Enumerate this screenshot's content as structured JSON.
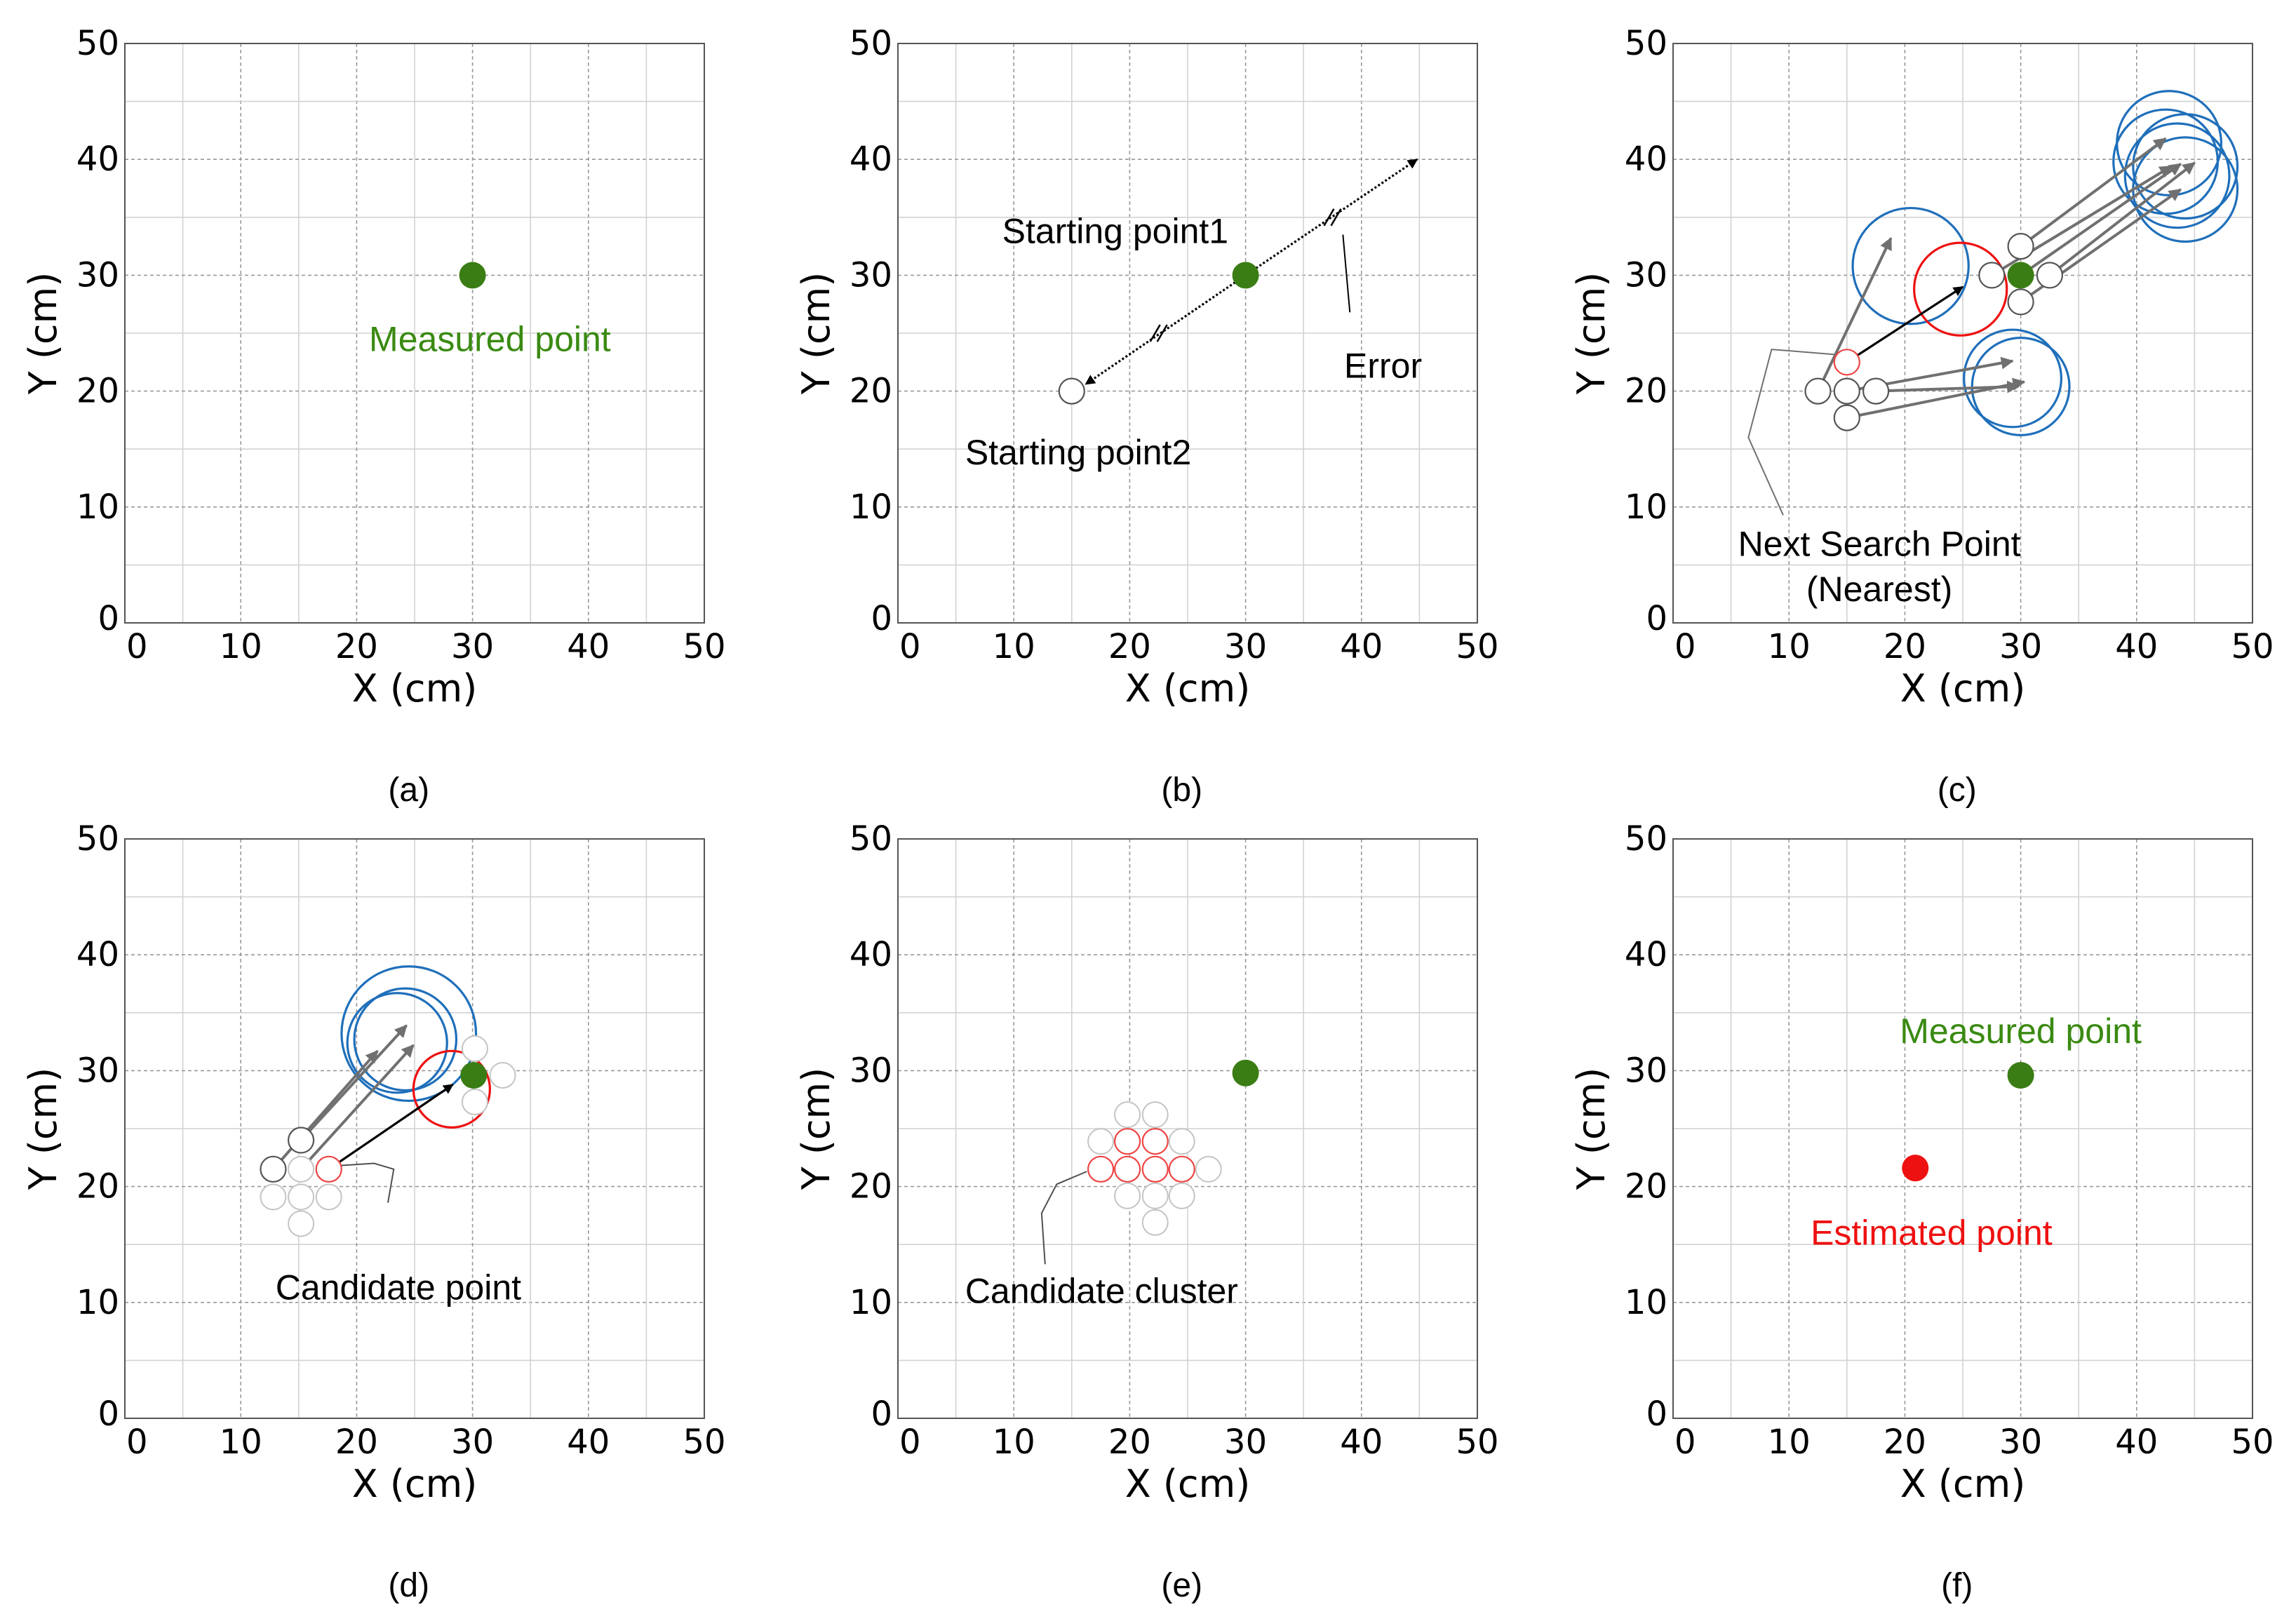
{
  "chart_data": [
    {
      "type": "scatter",
      "caption": "(a)",
      "xlabel": "X (cm)",
      "ylabel": "Y (cm)",
      "xlim": [
        0,
        50
      ],
      "ylim": [
        0,
        50
      ],
      "xticks": [
        "0",
        "10",
        "20",
        "30",
        "40",
        "50"
      ],
      "yticks": [
        "0",
        "10",
        "20",
        "30",
        "40",
        "50"
      ],
      "grid": true,
      "points": [
        {
          "x": 30,
          "y": 30,
          "kind": "measured"
        }
      ],
      "circles": [],
      "arrows": [],
      "leaders": [],
      "ticks_marks": [],
      "annotations": [
        {
          "text": "Measured point",
          "x": 31.5,
          "y": 24.5,
          "color": "#3a8a12",
          "anchor": "middle"
        }
      ]
    },
    {
      "type": "scatter",
      "caption": "(b)",
      "xlabel": "X (cm)",
      "ylabel": "Y (cm)",
      "xlim": [
        0,
        50
      ],
      "ylim": [
        0,
        50
      ],
      "xticks": [
        "0",
        "10",
        "20",
        "30",
        "40",
        "50"
      ],
      "yticks": [
        "0",
        "10",
        "20",
        "30",
        "40",
        "50"
      ],
      "grid": true,
      "points": [
        {
          "x": 30,
          "y": 30,
          "kind": "measured"
        },
        {
          "x": 15,
          "y": 20,
          "kind": "hollow"
        }
      ],
      "circles": [],
      "arrows": [
        {
          "x1": 30,
          "y1": 30,
          "x2": 16.2,
          "y2": 20.6,
          "color": "#000000",
          "dashed": true
        },
        {
          "x1": 30,
          "y1": 30,
          "x2": 44.8,
          "y2": 40,
          "color": "#000000",
          "dashed": true
        }
      ],
      "leaders": [
        {
          "points": [
            [
              38.4,
              33.5
            ],
            [
              39,
              26.8
            ]
          ],
          "color": "#000000"
        }
      ],
      "ticks_marks": [
        {
          "x": 22.5,
          "y": 25
        },
        {
          "x": 37.5,
          "y": 35
        }
      ],
      "annotations": [
        {
          "text": "Starting point1",
          "x": 9,
          "y": 33.8,
          "color": "#000000",
          "anchor": "start"
        },
        {
          "text": "Starting point2",
          "x": 5.8,
          "y": 14.7,
          "color": "#000000",
          "anchor": "start"
        },
        {
          "text": "Error",
          "x": 38.5,
          "y": 22.2,
          "color": "#000000",
          "anchor": "start"
        }
      ]
    },
    {
      "type": "scatter",
      "caption": "(c)",
      "xlabel": "X (cm)",
      "ylabel": "Y (cm)",
      "xlim": [
        0,
        50
      ],
      "ylim": [
        0,
        50
      ],
      "xticks": [
        "0",
        "10",
        "20",
        "30",
        "40",
        "50"
      ],
      "yticks": [
        "0",
        "10",
        "20",
        "30",
        "40",
        "50"
      ],
      "grid": true,
      "points": [
        {
          "x": 30,
          "y": 30,
          "kind": "measured"
        },
        {
          "x": 30,
          "y": 32.5,
          "kind": "hollow"
        },
        {
          "x": 27.5,
          "y": 30,
          "kind": "hollow"
        },
        {
          "x": 32.5,
          "y": 30,
          "kind": "hollow"
        },
        {
          "x": 30,
          "y": 27.7,
          "kind": "hollow"
        },
        {
          "x": 12.5,
          "y": 20,
          "kind": "hollow"
        },
        {
          "x": 15,
          "y": 20,
          "kind": "hollow"
        },
        {
          "x": 17.5,
          "y": 20,
          "kind": "hollow"
        },
        {
          "x": 15,
          "y": 17.7,
          "kind": "hollow"
        },
        {
          "x": 15,
          "y": 22.5,
          "kind": "hollow-red"
        }
      ],
      "circles": [
        {
          "x": 20.5,
          "y": 30.8,
          "r": 5,
          "color": "#1f6fba"
        },
        {
          "x": 24.8,
          "y": 28.8,
          "r": 4,
          "color": "#ee1111"
        },
        {
          "x": 29.3,
          "y": 21.1,
          "r": 4.2,
          "color": "#1f6fba"
        },
        {
          "x": 30,
          "y": 20.4,
          "r": 4.2,
          "color": "#1f6fba"
        },
        {
          "x": 42.8,
          "y": 41.4,
          "r": 4.5,
          "color": "#1f6fba"
        },
        {
          "x": 44.2,
          "y": 39.4,
          "r": 4.5,
          "color": "#1f6fba"
        },
        {
          "x": 43.5,
          "y": 38.6,
          "r": 4.5,
          "color": "#1f6fba"
        },
        {
          "x": 44.2,
          "y": 37.4,
          "r": 4.5,
          "color": "#1f6fba"
        },
        {
          "x": 42.5,
          "y": 39.8,
          "r": 4.5,
          "color": "#1f6fba"
        }
      ],
      "arrows": [
        {
          "x1": 12.5,
          "y1": 20,
          "x2": 18.8,
          "y2": 33.2,
          "color": "#707070"
        },
        {
          "x1": 15,
          "y1": 22.5,
          "x2": 25,
          "y2": 29,
          "color": "#000000"
        },
        {
          "x1": 15,
          "y1": 20,
          "x2": 29.3,
          "y2": 22.6,
          "color": "#707070"
        },
        {
          "x1": 17.5,
          "y1": 20,
          "x2": 29.8,
          "y2": 20.4,
          "color": "#707070"
        },
        {
          "x1": 15,
          "y1": 17.7,
          "x2": 30.3,
          "y2": 20.8,
          "color": "#707070"
        },
        {
          "x1": 30,
          "y1": 32.5,
          "x2": 42.5,
          "y2": 41.8,
          "color": "#707070"
        },
        {
          "x1": 27.5,
          "y1": 30,
          "x2": 43,
          "y2": 39.4,
          "color": "#707070"
        },
        {
          "x1": 30,
          "y1": 30,
          "x2": 43.8,
          "y2": 39.6,
          "color": "#707070"
        },
        {
          "x1": 32.5,
          "y1": 30,
          "x2": 45,
          "y2": 39.7,
          "color": "#707070"
        },
        {
          "x1": 30,
          "y1": 27.7,
          "x2": 43.8,
          "y2": 37.4,
          "color": "#707070"
        }
      ],
      "leaders": [
        {
          "points": [
            [
              14.7,
              23.1
            ],
            [
              8.5,
              23.6
            ],
            [
              6.5,
              16
            ],
            [
              9.5,
              9.3
            ]
          ],
          "color": "#707070"
        }
      ],
      "ticks_marks": [],
      "annotations": [
        {
          "text": "Next Search Point",
          "x": 17.8,
          "y": 6.8,
          "color": "#000000",
          "anchor": "middle"
        },
        {
          "text": "(Nearest)",
          "x": 17.8,
          "y": 2.9,
          "color": "#000000",
          "anchor": "middle"
        }
      ]
    },
    {
      "type": "scatter",
      "caption": "(d)",
      "xlabel": "X (cm)",
      "ylabel": "Y (cm)",
      "xlim": [
        0,
        50
      ],
      "ylim": [
        0,
        50
      ],
      "xticks": [
        "0",
        "10",
        "20",
        "30",
        "40",
        "50"
      ],
      "yticks": [
        "0",
        "10",
        "20",
        "30",
        "40",
        "50"
      ],
      "grid": true,
      "points": [
        {
          "x": 30.1,
          "y": 29.6,
          "kind": "measured"
        },
        {
          "x": 30.2,
          "y": 31.9,
          "kind": "hollow-light"
        },
        {
          "x": 32.6,
          "y": 29.6,
          "kind": "hollow-light"
        },
        {
          "x": 30.2,
          "y": 27.3,
          "kind": "hollow-light"
        },
        {
          "x": 12.8,
          "y": 21.5,
          "kind": "hollow"
        },
        {
          "x": 15.2,
          "y": 24,
          "kind": "hollow"
        },
        {
          "x": 15.2,
          "y": 21.5,
          "kind": "hollow-light"
        },
        {
          "x": 12.8,
          "y": 19.1,
          "kind": "hollow-light"
        },
        {
          "x": 15.2,
          "y": 19.1,
          "kind": "hollow-light"
        },
        {
          "x": 17.6,
          "y": 19.1,
          "kind": "hollow-light"
        },
        {
          "x": 15.2,
          "y": 16.8,
          "kind": "hollow-light"
        },
        {
          "x": 17.6,
          "y": 21.5,
          "kind": "hollow-red"
        }
      ],
      "circles": [
        {
          "x": 23.5,
          "y": 32.4,
          "r": 4.3,
          "color": "#1f6fba"
        },
        {
          "x": 24.2,
          "y": 32.7,
          "r": 4.4,
          "color": "#1f6fba"
        },
        {
          "x": 24.5,
          "y": 33.2,
          "r": 5.8,
          "color": "#1f6fba"
        },
        {
          "x": 28.2,
          "y": 28.4,
          "r": 3.3,
          "color": "#ee1111"
        }
      ],
      "arrows": [
        {
          "x1": 12.8,
          "y1": 21.5,
          "x2": 21.8,
          "y2": 31.7,
          "color": "#707070"
        },
        {
          "x1": 15.2,
          "y1": 24,
          "x2": 24.3,
          "y2": 33.9,
          "color": "#707070"
        },
        {
          "x1": 15.2,
          "y1": 21.5,
          "x2": 24.9,
          "y2": 32.2,
          "color": "#707070"
        },
        {
          "x1": 17.6,
          "y1": 21.5,
          "x2": 28.3,
          "y2": 28.8,
          "color": "#000000"
        }
      ],
      "leaders": [
        {
          "points": [
            [
              18.3,
              21.8
            ],
            [
              21.5,
              22
            ],
            [
              23.2,
              21.5
            ],
            [
              22.7,
              18.6
            ]
          ],
          "color": "#505050"
        }
      ],
      "ticks_marks": [],
      "annotations": [
        {
          "text": "Candidate point",
          "x": 13,
          "y": 11.3,
          "color": "#000000",
          "anchor": "start"
        }
      ]
    },
    {
      "type": "scatter",
      "caption": "(e)",
      "xlabel": "X (cm)",
      "ylabel": "Y (cm)",
      "xlim": [
        0,
        50
      ],
      "ylim": [
        0,
        50
      ],
      "xticks": [
        "0",
        "10",
        "20",
        "30",
        "40",
        "50"
      ],
      "yticks": [
        "0",
        "10",
        "20",
        "30",
        "40",
        "50"
      ],
      "grid": true,
      "points": [
        {
          "x": 30,
          "y": 29.8,
          "kind": "measured"
        },
        {
          "x": 19.8,
          "y": 26.2,
          "kind": "hollow-light"
        },
        {
          "x": 22.2,
          "y": 26.2,
          "kind": "hollow-light"
        },
        {
          "x": 17.5,
          "y": 23.9,
          "kind": "hollow-light"
        },
        {
          "x": 24.5,
          "y": 23.9,
          "kind": "hollow-light"
        },
        {
          "x": 26.8,
          "y": 21.5,
          "kind": "hollow-light"
        },
        {
          "x": 19.8,
          "y": 19.2,
          "kind": "hollow-light"
        },
        {
          "x": 22.2,
          "y": 19.2,
          "kind": "hollow-light"
        },
        {
          "x": 24.5,
          "y": 19.2,
          "kind": "hollow-light"
        },
        {
          "x": 22.2,
          "y": 16.9,
          "kind": "hollow-light"
        },
        {
          "x": 19.8,
          "y": 23.9,
          "kind": "hollow-red"
        },
        {
          "x": 22.2,
          "y": 23.9,
          "kind": "hollow-red"
        },
        {
          "x": 17.5,
          "y": 21.5,
          "kind": "hollow-red"
        },
        {
          "x": 19.8,
          "y": 21.5,
          "kind": "hollow-red"
        },
        {
          "x": 22.2,
          "y": 21.5,
          "kind": "hollow-red"
        },
        {
          "x": 24.5,
          "y": 21.5,
          "kind": "hollow-red"
        }
      ],
      "circles": [],
      "arrows": [],
      "leaders": [
        {
          "points": [
            [
              16.3,
              21.3
            ],
            [
              13.7,
              20.2
            ],
            [
              12.4,
              17.7
            ],
            [
              12.7,
              13.3
            ]
          ],
          "color": "#505050"
        }
      ],
      "ticks_marks": [],
      "annotations": [
        {
          "text": "Candidate cluster",
          "x": 5.8,
          "y": 11,
          "color": "#000000",
          "anchor": "start"
        }
      ]
    },
    {
      "type": "scatter",
      "caption": "(f)",
      "xlabel": "X (cm)",
      "ylabel": "Y (cm)",
      "xlim": [
        0,
        50
      ],
      "ylim": [
        0,
        50
      ],
      "xticks": [
        "0",
        "10",
        "20",
        "30",
        "40",
        "50"
      ],
      "yticks": [
        "0",
        "10",
        "20",
        "30",
        "40",
        "50"
      ],
      "grid": true,
      "points": [
        {
          "x": 30,
          "y": 29.6,
          "kind": "measured"
        },
        {
          "x": 20.9,
          "y": 21.6,
          "kind": "estimated"
        }
      ],
      "circles": [],
      "arrows": [],
      "leaders": [],
      "ticks_marks": [],
      "annotations": [
        {
          "text": "Measured point",
          "x": 30,
          "y": 33.4,
          "color": "#3a8a12",
          "anchor": "middle"
        },
        {
          "text": "Estimated point",
          "x": 22.3,
          "y": 16,
          "color": "#ee1111",
          "anchor": "middle"
        }
      ]
    }
  ]
}
